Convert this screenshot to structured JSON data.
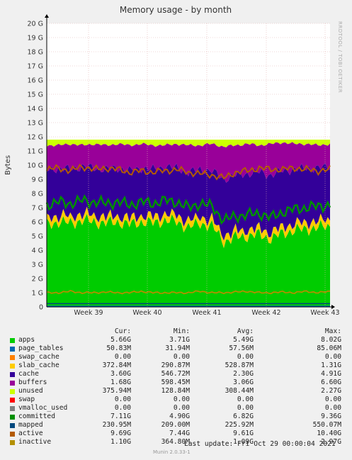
{
  "window": {
    "title": "Memory usage - by month",
    "side_text": "RRDTOOL / TOBI OETIKER",
    "footer_version": "Munin 2.0.33-1"
  },
  "chart_data": {
    "type": "area",
    "title": "Memory usage - by month",
    "ylabel": "Bytes",
    "ylim": [
      0,
      20
    ],
    "y_ticks": [
      "0",
      "1 G",
      "2 G",
      "3 G",
      "4 G",
      "5 G",
      "6 G",
      "7 G",
      "8 G",
      "9 G",
      "10 G",
      "11 G",
      "12 G",
      "13 G",
      "14 G",
      "15 G",
      "16 G",
      "17 G",
      "18 G",
      "19 G",
      "20 G"
    ],
    "x_ticks": [
      "Week 39",
      "Week 40",
      "Week 41",
      "Week 42",
      "Week 43"
    ],
    "grid": true,
    "stack_profile": {
      "description_free": true,
      "apps": [
        5.8,
        6.0,
        5.9,
        6.1,
        6.0,
        5.9,
        6.0,
        5.8,
        6.0,
        5.9,
        6.1,
        6.0,
        5.6,
        5.9,
        5.7,
        4.6,
        4.9,
        5.0,
        5.1,
        4.8,
        5.2,
        5.4,
        5.5,
        5.6,
        5.7
      ],
      "committed": [
        7.2,
        7.4,
        7.3,
        7.5,
        7.4,
        7.3,
        7.4,
        7.2,
        7.4,
        7.3,
        7.5,
        7.4,
        7.0,
        7.3,
        7.1,
        6.1,
        6.4,
        6.5,
        6.6,
        6.3,
        6.7,
        6.9,
        7.0,
        7.1,
        7.2
      ],
      "cache_top": [
        9.6,
        9.8,
        9.7,
        9.9,
        9.8,
        9.7,
        9.8,
        9.6,
        9.8,
        9.7,
        9.9,
        9.8,
        9.5,
        9.7,
        9.6,
        9.0,
        9.3,
        9.4,
        9.5,
        9.3,
        9.6,
        9.7,
        9.8,
        9.8,
        9.9
      ],
      "active": [
        9.7,
        9.8,
        9.6,
        9.9,
        9.7,
        9.8,
        9.7,
        9.5,
        9.6,
        9.5,
        9.6,
        9.7,
        9.5,
        9.4,
        9.3,
        9.1,
        9.5,
        9.6,
        9.8,
        9.7,
        9.7,
        9.8,
        9.7,
        9.6,
        9.7
      ],
      "buffers_top": [
        11.4,
        11.4,
        11.5,
        11.4,
        11.5,
        11.4,
        11.5,
        11.4,
        11.5,
        11.4,
        11.4,
        11.5,
        11.4,
        11.4,
        11.5,
        11.3,
        11.4,
        11.5,
        11.4,
        11.5,
        11.6,
        11.5,
        11.5,
        11.4,
        11.5
      ],
      "unused_top": [
        11.8,
        11.8,
        11.8,
        11.8,
        11.8,
        11.8,
        11.8,
        11.8,
        11.8,
        11.8,
        11.8,
        11.8,
        11.8,
        11.8,
        11.8,
        11.8,
        11.8,
        11.8,
        11.8,
        11.8,
        11.8,
        11.8,
        11.8,
        11.8,
        11.8
      ],
      "inactive": [
        1.0,
        1.0,
        1.1,
        1.0,
        1.0,
        1.05,
        1.0,
        1.0,
        1.1,
        1.0,
        1.0,
        1.0,
        1.0,
        1.1,
        1.0,
        1.0,
        1.05,
        1.1,
        1.0,
        1.0,
        1.05,
        1.0,
        1.1,
        1.0,
        1.1
      ],
      "mapped": [
        0.23,
        0.23,
        0.23,
        0.23,
        0.23,
        0.23,
        0.23,
        0.23,
        0.23,
        0.23,
        0.23,
        0.23,
        0.23,
        0.23,
        0.23,
        0.23,
        0.23,
        0.23,
        0.23,
        0.23,
        0.23,
        0.23,
        0.23,
        0.23,
        0.23
      ]
    },
    "legend_header": {
      "cur": "Cur:",
      "min": "Min:",
      "avg": "Avg:",
      "max": "Max:"
    },
    "series": [
      {
        "name": "apps",
        "color": "#00cc00",
        "cur": "5.66G",
        "min": "3.71G",
        "avg": "5.49G",
        "max": "8.02G"
      },
      {
        "name": "page_tables",
        "color": "#0066b3",
        "cur": "50.83M",
        "min": "31.94M",
        "avg": "57.56M",
        "max": "85.06M"
      },
      {
        "name": "swap_cache",
        "color": "#ff8000",
        "cur": "0.00",
        "min": "0.00",
        "avg": "0.00",
        "max": "0.00"
      },
      {
        "name": "slab_cache",
        "color": "#ffcc00",
        "cur": "372.84M",
        "min": "290.87M",
        "avg": "528.87M",
        "max": "1.31G"
      },
      {
        "name": "cache",
        "color": "#330099",
        "cur": "3.60G",
        "min": "546.72M",
        "avg": "2.30G",
        "max": "4.91G"
      },
      {
        "name": "buffers",
        "color": "#990099",
        "cur": "1.68G",
        "min": "598.45M",
        "avg": "3.06G",
        "max": "6.60G"
      },
      {
        "name": "unused",
        "color": "#ccff00",
        "cur": "375.94M",
        "min": "128.84M",
        "avg": "308.44M",
        "max": "2.27G"
      },
      {
        "name": "swap",
        "color": "#ff0000",
        "cur": "0.00",
        "min": "0.00",
        "avg": "0.00",
        "max": "0.00"
      },
      {
        "name": "vmalloc_used",
        "color": "#808080",
        "cur": "0.00",
        "min": "0.00",
        "avg": "0.00",
        "max": "0.00"
      },
      {
        "name": "committed",
        "color": "#008f00",
        "cur": "7.11G",
        "min": "4.90G",
        "avg": "6.82G",
        "max": "9.36G"
      },
      {
        "name": "mapped",
        "color": "#00487d",
        "cur": "230.95M",
        "min": "209.00M",
        "avg": "225.92M",
        "max": "550.07M"
      },
      {
        "name": "active",
        "color": "#b35a00",
        "cur": "9.69G",
        "min": "7.44G",
        "avg": "9.61G",
        "max": "10.40G"
      },
      {
        "name": "inactive",
        "color": "#b38f00",
        "cur": "1.10G",
        "min": "364.80M",
        "avg": "1.09G",
        "max": "2.97G"
      }
    ],
    "last_update": "Last update:  Fri Oct 29 00:00:04 2021"
  }
}
